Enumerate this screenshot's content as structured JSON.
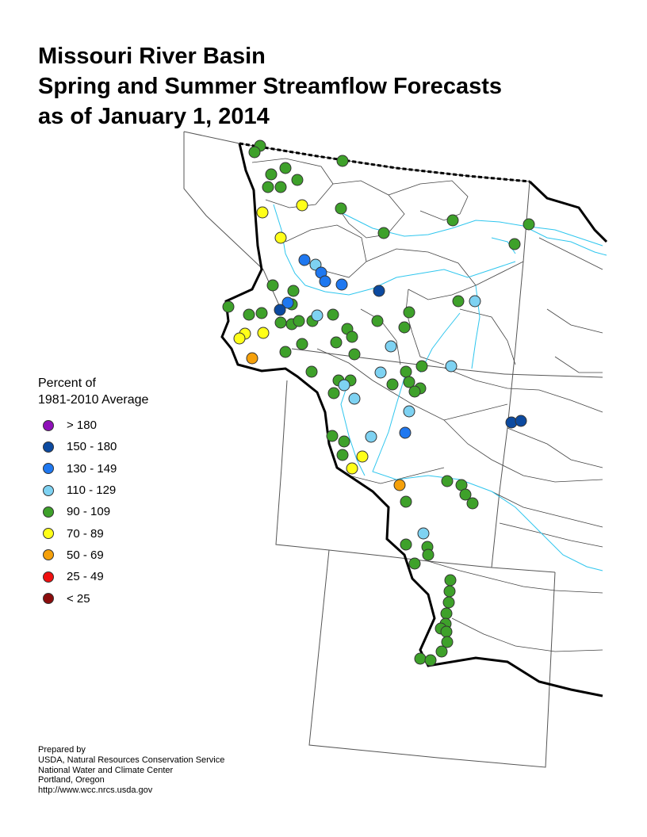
{
  "title": {
    "line1": "Missouri River Basin",
    "line2": "Spring and Summer Streamflow Forecasts",
    "line3": "as of January 1, 2014"
  },
  "legend": {
    "title_line1": "Percent of",
    "title_line2": "1981-2010 Average",
    "items": [
      {
        "label": "> 180",
        "color": "#8e10b8"
      },
      {
        "label": "150 - 180",
        "color": "#0c4aa0"
      },
      {
        "label": "130 - 149",
        "color": "#1f78f0"
      },
      {
        "label": "110 - 129",
        "color": "#7ed2f2"
      },
      {
        "label": "90 - 109",
        "color": "#3ea12a"
      },
      {
        "label": "70 - 89",
        "color": "#ffff19"
      },
      {
        "label": "50 - 69",
        "color": "#f5a00a"
      },
      {
        "label": "25 - 49",
        "color": "#f01010"
      },
      {
        "label": "< 25",
        "color": "#8b0c0c"
      }
    ]
  },
  "credits": {
    "line1": "Prepared by",
    "line2": "USDA, Natural Resources Conservation Service",
    "line3": "National Water and Climate Center",
    "line4": "Portland, Oregon",
    "line5": "http://www.wcc.nrcs.usda.gov"
  },
  "colors": {
    "state_boundary": "#555555",
    "basin_outline": "#000000",
    "subbasin_lines": "#444444",
    "rivers": "#2fc6ee"
  }
}
